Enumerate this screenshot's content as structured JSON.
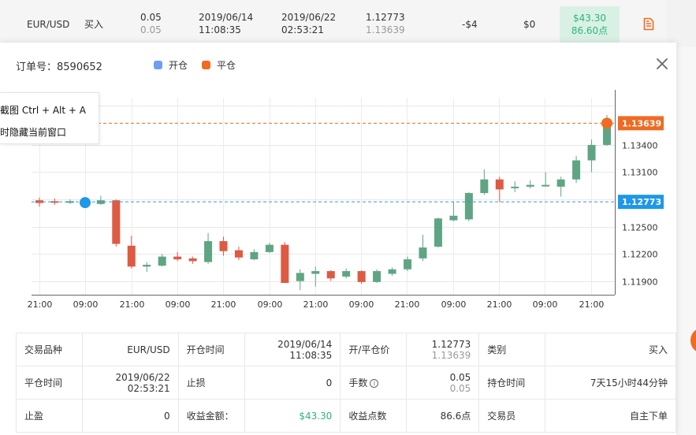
{
  "trade_row": {
    "symbol": "EUR/USD",
    "side": "买入",
    "lots": "0.05",
    "lots_sub": "0.05",
    "open_date": "2019/06/14",
    "open_time": "11:08:35",
    "close_date": "2019/06/22",
    "close_time": "02:53:21",
    "price_open": "1.12773",
    "price_close": "1.13639",
    "swap": "-$4",
    "commission": "$0",
    "profit": "$43.30",
    "profit_points": "86.60点",
    "doc_icon": "document-icon"
  },
  "modal": {
    "order_label": "订单号：8590652",
    "legend": [
      {
        "label": "开仓",
        "color": "#6e9ef0"
      },
      {
        "label": "平仓",
        "color": "#f06b22"
      }
    ],
    "close_icon": "close-icon"
  },
  "tooltip": {
    "line1": "截图 Ctrl + Alt + A",
    "line2": "时隐藏当前窗口"
  },
  "chart_data": {
    "type": "candlestick",
    "x_tick_labels": [
      "21:00",
      "09:00",
      "21:00",
      "09:00",
      "21:00",
      "09:00",
      "21:00",
      "09:00",
      "21:00",
      "09:00",
      "21:00",
      "09:00",
      "21:00"
    ],
    "y_tick_labels": [
      "1.11900",
      "1.12200",
      "1.12500",
      "1.12800",
      "1.13100",
      "1.13400"
    ],
    "ylim": [
      1.1175,
      1.1392
    ],
    "open_price": 1.12773,
    "open_price_label": "1.12773",
    "close_price": 1.13639,
    "close_price_label": "1.13639",
    "up_color": "#5fa583",
    "down_color": "#de5a43",
    "candles": [
      {
        "o": 1.1279,
        "h": 1.1282,
        "l": 1.1272,
        "c": 1.1276
      },
      {
        "o": 1.1278,
        "h": 1.1281,
        "l": 1.1274,
        "c": 1.1277
      },
      {
        "o": 1.1277,
        "h": 1.128,
        "l": 1.1275,
        "c": 1.1278
      },
      {
        "o": 1.1277,
        "h": 1.1279,
        "l": 1.1275,
        "c": 1.1278
      },
      {
        "o": 1.1275,
        "h": 1.1284,
        "l": 1.1274,
        "c": 1.1279
      },
      {
        "o": 1.1279,
        "h": 1.128,
        "l": 1.1228,
        "c": 1.1231
      },
      {
        "o": 1.1229,
        "h": 1.124,
        "l": 1.1204,
        "c": 1.1206
      },
      {
        "o": 1.1206,
        "h": 1.1211,
        "l": 1.12,
        "c": 1.1208
      },
      {
        "o": 1.1207,
        "h": 1.122,
        "l": 1.1206,
        "c": 1.1217
      },
      {
        "o": 1.1217,
        "h": 1.1222,
        "l": 1.1212,
        "c": 1.1214
      },
      {
        "o": 1.1215,
        "h": 1.1217,
        "l": 1.1209,
        "c": 1.1212
      },
      {
        "o": 1.1211,
        "h": 1.1243,
        "l": 1.1209,
        "c": 1.1234
      },
      {
        "o": 1.1234,
        "h": 1.1239,
        "l": 1.1218,
        "c": 1.1223
      },
      {
        "o": 1.1224,
        "h": 1.1228,
        "l": 1.1213,
        "c": 1.1216
      },
      {
        "o": 1.1214,
        "h": 1.1225,
        "l": 1.1213,
        "c": 1.1222
      },
      {
        "o": 1.1222,
        "h": 1.1232,
        "l": 1.1221,
        "c": 1.123
      },
      {
        "o": 1.123,
        "h": 1.1233,
        "l": 1.1188,
        "c": 1.1188
      },
      {
        "o": 1.119,
        "h": 1.1203,
        "l": 1.118,
        "c": 1.1199
      },
      {
        "o": 1.1198,
        "h": 1.1206,
        "l": 1.1184,
        "c": 1.1201
      },
      {
        "o": 1.1201,
        "h": 1.1202,
        "l": 1.119,
        "c": 1.1193
      },
      {
        "o": 1.1195,
        "h": 1.1204,
        "l": 1.1193,
        "c": 1.1201
      },
      {
        "o": 1.1201,
        "h": 1.1202,
        "l": 1.1187,
        "c": 1.1189
      },
      {
        "o": 1.1189,
        "h": 1.1203,
        "l": 1.1188,
        "c": 1.1201
      },
      {
        "o": 1.1198,
        "h": 1.1205,
        "l": 1.1196,
        "c": 1.1203
      },
      {
        "o": 1.1203,
        "h": 1.1217,
        "l": 1.1201,
        "c": 1.1214
      },
      {
        "o": 1.1215,
        "h": 1.1241,
        "l": 1.1212,
        "c": 1.1227
      },
      {
        "o": 1.1228,
        "h": 1.126,
        "l": 1.1227,
        "c": 1.1259
      },
      {
        "o": 1.1257,
        "h": 1.1278,
        "l": 1.1256,
        "c": 1.1262
      },
      {
        "o": 1.1258,
        "h": 1.1288,
        "l": 1.1256,
        "c": 1.1287
      },
      {
        "o": 1.1287,
        "h": 1.1313,
        "l": 1.1285,
        "c": 1.1302
      },
      {
        "o": 1.1302,
        "h": 1.1305,
        "l": 1.1277,
        "c": 1.1291
      },
      {
        "o": 1.1293,
        "h": 1.13,
        "l": 1.1288,
        "c": 1.1294
      },
      {
        "o": 1.1294,
        "h": 1.1301,
        "l": 1.1292,
        "c": 1.1296
      },
      {
        "o": 1.1295,
        "h": 1.131,
        "l": 1.1294,
        "c": 1.1296
      },
      {
        "o": 1.1294,
        "h": 1.1305,
        "l": 1.1283,
        "c": 1.1302
      },
      {
        "o": 1.1302,
        "h": 1.1328,
        "l": 1.1298,
        "c": 1.1323
      },
      {
        "o": 1.1323,
        "h": 1.1346,
        "l": 1.131,
        "c": 1.134
      },
      {
        "o": 1.134,
        "h": 1.1373,
        "l": 1.1339,
        "c": 1.1364
      }
    ]
  },
  "info": {
    "rows": [
      [
        {
          "label": "交易品种",
          "value": "EUR/USD"
        },
        {
          "label": "开仓时间",
          "value": "2019/06/14",
          "value2": "11:08:35"
        },
        {
          "label": "开/平仓价",
          "value": "1.12773",
          "value2": "1.13639",
          "value2_sub": true
        },
        {
          "label": "类别",
          "value": "买入"
        }
      ],
      [
        {
          "label": "平仓时间",
          "value": "2019/06/22",
          "value2": "02:53:21"
        },
        {
          "label": "止损",
          "value": "0"
        },
        {
          "label": "手数",
          "info_icon": "info-icon",
          "value": "0.05",
          "value2": "0.05",
          "value2_sub": true
        },
        {
          "label": "持仓时间",
          "value": "7天15小时44分钟"
        }
      ],
      [
        {
          "label": "止盈",
          "value": "0"
        },
        {
          "label": "收益金额：",
          "value": "$43.30",
          "green": true
        },
        {
          "label": "收益点数",
          "value": "86.6点"
        },
        {
          "label": "交易员",
          "value": "自主下单"
        }
      ]
    ]
  }
}
